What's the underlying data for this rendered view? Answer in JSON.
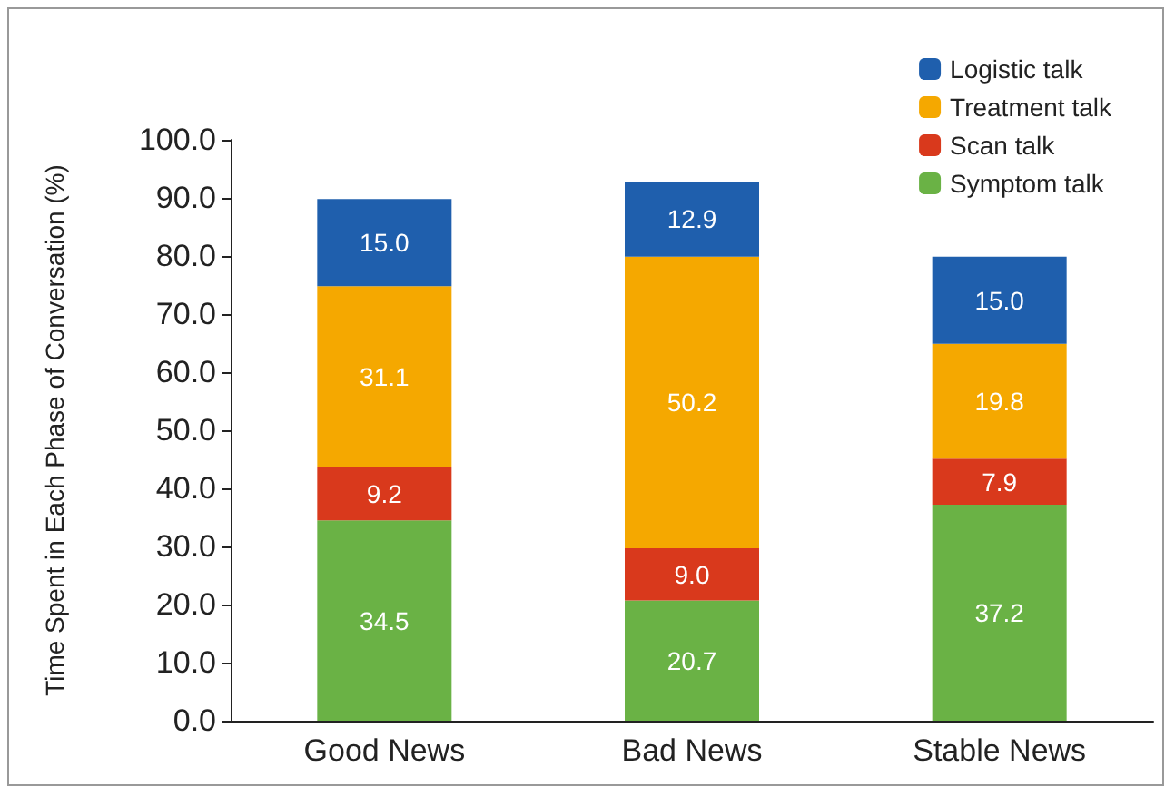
{
  "chart_data": {
    "type": "bar",
    "stacked": true,
    "ylabel": "Time Spent in Each Phase of Conversation (%)",
    "categories": [
      "Good News",
      "Bad News",
      "Stable News"
    ],
    "series": [
      {
        "name": "Symptom talk",
        "color": "#6ab245",
        "values": [
          34.5,
          20.7,
          37.2
        ],
        "value_labels": [
          "34.5",
          "20.7",
          "37.2"
        ]
      },
      {
        "name": "Scan talk",
        "color": "#d9391c",
        "values": [
          9.2,
          9.0,
          7.9
        ],
        "value_labels": [
          "9.2",
          "9.0",
          "7.9"
        ]
      },
      {
        "name": "Treatment talk",
        "color": "#f5a800",
        "values": [
          31.1,
          50.2,
          19.8
        ],
        "value_labels": [
          "31.1",
          "50.2",
          "19.8"
        ]
      },
      {
        "name": "Logistic talk",
        "color": "#1f5fad",
        "values": [
          15.0,
          12.9,
          15.0
        ],
        "value_labels": [
          "15.0",
          "12.9",
          "15.0"
        ]
      }
    ],
    "ylim": [
      0,
      100
    ],
    "yticks": [
      {
        "value": 0,
        "label": "0.0"
      },
      {
        "value": 10,
        "label": "10.0"
      },
      {
        "value": 20,
        "label": "20.0"
      },
      {
        "value": 30,
        "label": "30.0"
      },
      {
        "value": 40,
        "label": "40.0"
      },
      {
        "value": 50,
        "label": "50.0"
      },
      {
        "value": 60,
        "label": "60.0"
      },
      {
        "value": 70,
        "label": "70.0"
      },
      {
        "value": 80,
        "label": "80.0"
      },
      {
        "value": 90,
        "label": "90.0"
      },
      {
        "value": 100,
        "label": "100.0"
      }
    ],
    "grid": false,
    "legend": "top right"
  }
}
